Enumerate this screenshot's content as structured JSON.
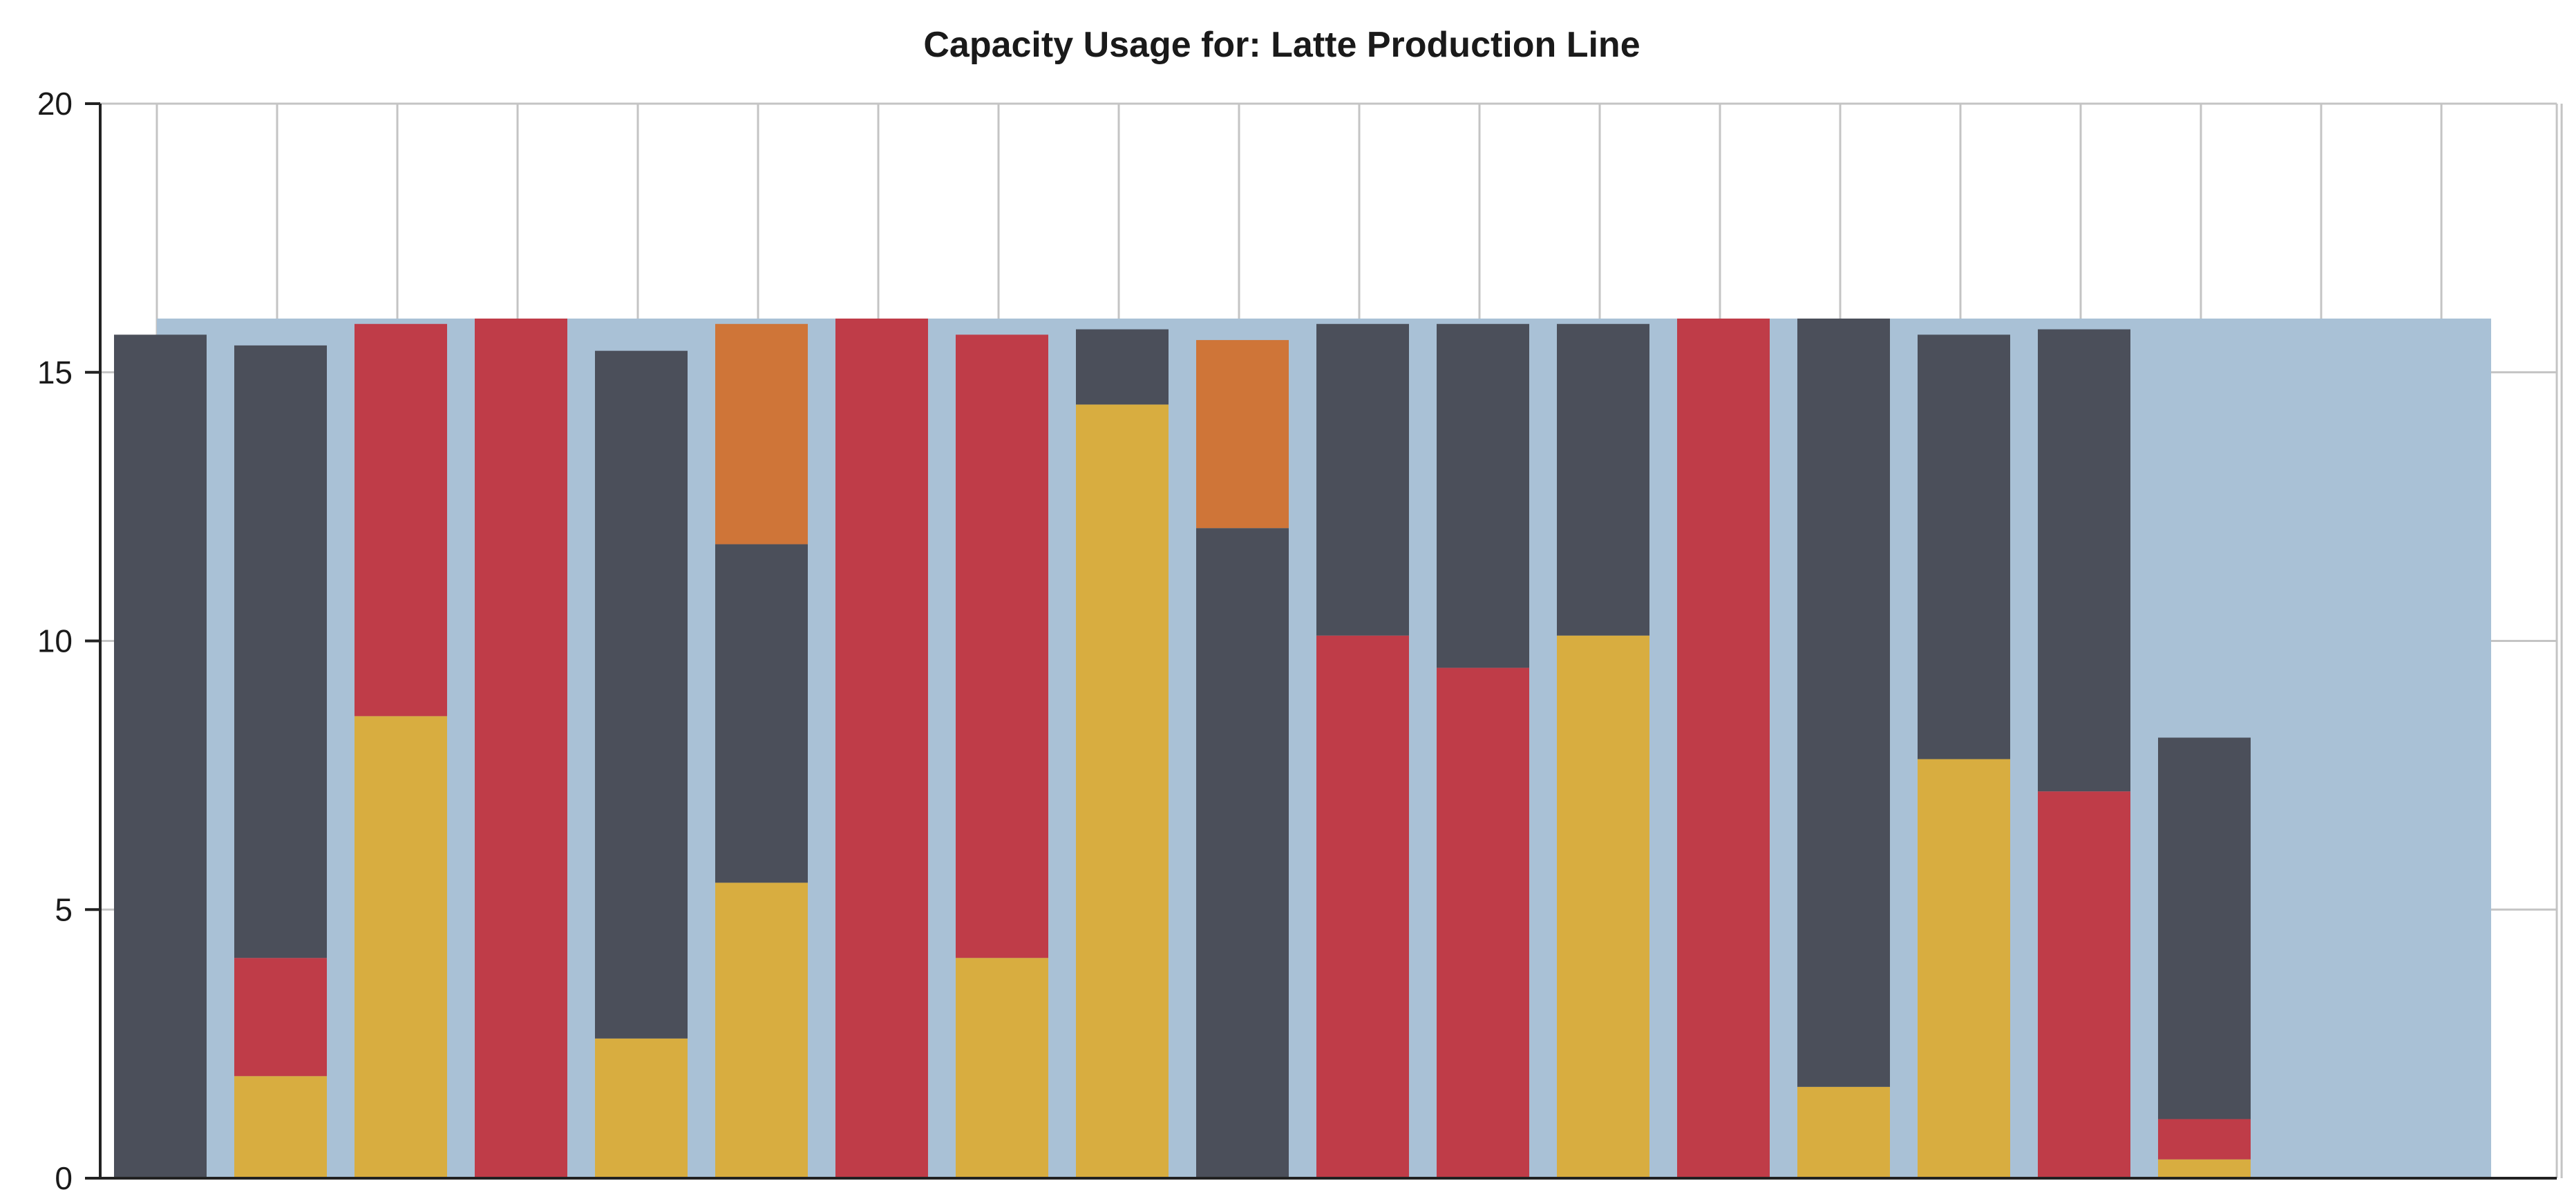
{
  "chart_data": {
    "type": "bar",
    "stacked": true,
    "title": "Capacity Usage for: Latte Production Line",
    "xlabel": "",
    "ylabel": "",
    "ylim": [
      0,
      20
    ],
    "yticks": [
      0,
      5,
      10,
      15,
      20
    ],
    "grid": true,
    "capacity": 16,
    "capacity_extends_to_slot": 20,
    "slots": 21,
    "colors": {
      "capacity": "#a9c1d6",
      "yellow": "#d8ad40",
      "red": "#bf3c48",
      "orange": "#cf7538",
      "gray": "#4b4f5a"
    },
    "bars": [
      {
        "segments": [
          {
            "color": "gray",
            "value": 15.7
          }
        ]
      },
      {
        "segments": [
          {
            "color": "yellow",
            "value": 1.9
          },
          {
            "color": "red",
            "value": 2.2
          },
          {
            "color": "gray",
            "value": 11.4
          }
        ]
      },
      {
        "segments": [
          {
            "color": "yellow",
            "value": 8.6
          },
          {
            "color": "red",
            "value": 7.3
          }
        ]
      },
      {
        "segments": [
          {
            "color": "red",
            "value": 16.0
          }
        ]
      },
      {
        "segments": [
          {
            "color": "yellow",
            "value": 2.6
          },
          {
            "color": "gray",
            "value": 12.8
          }
        ]
      },
      {
        "segments": [
          {
            "color": "yellow",
            "value": 5.5
          },
          {
            "color": "gray",
            "value": 6.3
          },
          {
            "color": "orange",
            "value": 4.1
          }
        ]
      },
      {
        "segments": [
          {
            "color": "red",
            "value": 16.0
          }
        ]
      },
      {
        "segments": [
          {
            "color": "yellow",
            "value": 4.1
          },
          {
            "color": "red",
            "value": 11.6
          }
        ]
      },
      {
        "segments": [
          {
            "color": "yellow",
            "value": 14.4
          },
          {
            "color": "gray",
            "value": 1.4
          }
        ]
      },
      {
        "segments": [
          {
            "color": "gray",
            "value": 12.1
          },
          {
            "color": "orange",
            "value": 3.5
          }
        ]
      },
      {
        "segments": [
          {
            "color": "red",
            "value": 10.1
          },
          {
            "color": "gray",
            "value": 5.8
          }
        ]
      },
      {
        "segments": [
          {
            "color": "red",
            "value": 9.5
          },
          {
            "color": "gray",
            "value": 6.4
          }
        ]
      },
      {
        "segments": [
          {
            "color": "yellow",
            "value": 10.1
          },
          {
            "color": "gray",
            "value": 5.8
          }
        ]
      },
      {
        "segments": [
          {
            "color": "red",
            "value": 16.0
          }
        ]
      },
      {
        "segments": [
          {
            "color": "yellow",
            "value": 1.7
          },
          {
            "color": "gray",
            "value": 14.3
          }
        ]
      },
      {
        "segments": [
          {
            "color": "yellow",
            "value": 7.8
          },
          {
            "color": "gray",
            "value": 7.9
          }
        ]
      },
      {
        "segments": [
          {
            "color": "red",
            "value": 7.2
          },
          {
            "color": "gray",
            "value": 8.6
          }
        ]
      },
      {
        "segments": [
          {
            "color": "yellow",
            "value": 0.35
          },
          {
            "color": "red",
            "value": 0.75
          },
          {
            "color": "gray",
            "value": 7.1
          }
        ]
      }
    ]
  }
}
